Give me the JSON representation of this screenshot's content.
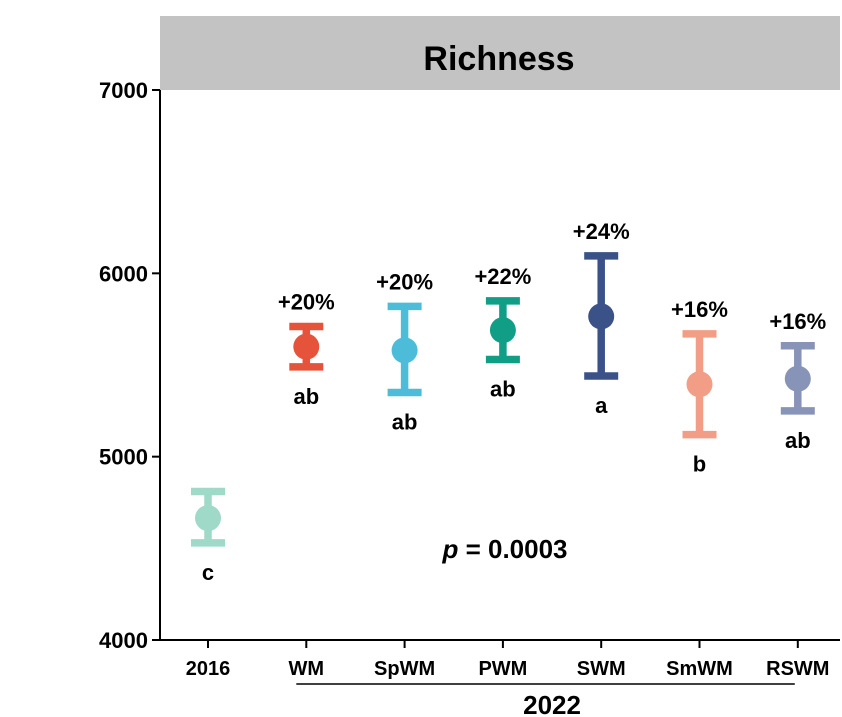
{
  "chart_data": {
    "type": "scatter",
    "title": "Richness",
    "xlabel": "",
    "ylabel": "",
    "ylim": [
      4000,
      7000
    ],
    "yticks": [
      4000,
      5000,
      6000,
      7000
    ],
    "grid": false,
    "categories": [
      "2016",
      "WM",
      "SpWM",
      "PWM",
      "SWM",
      "SmWM",
      "RSWM"
    ],
    "group_label": "2022",
    "group_label_spans": [
      "WM",
      "RSWM"
    ],
    "p_value_prefix": "p",
    "p_value_text": " = 0.0003",
    "series": [
      {
        "category": "2016",
        "mean": 4665,
        "lower": 4530,
        "upper": 4810,
        "pct_label": "",
        "sig": "c",
        "color": "#9fd9c7"
      },
      {
        "category": "WM",
        "mean": 5600,
        "lower": 5490,
        "upper": 5710,
        "pct_label": "+20%",
        "sig": "ab",
        "color": "#e5533a"
      },
      {
        "category": "SpWM",
        "mean": 5580,
        "lower": 5350,
        "upper": 5820,
        "pct_label": "+20%",
        "sig": "ab",
        "color": "#4dbcd8"
      },
      {
        "category": "PWM",
        "mean": 5690,
        "lower": 5530,
        "upper": 5850,
        "pct_label": "+22%",
        "sig": "ab",
        "color": "#119e87"
      },
      {
        "category": "SWM",
        "mean": 5765,
        "lower": 5440,
        "upper": 6095,
        "pct_label": "+24%",
        "sig": "a",
        "color": "#3b5289"
      },
      {
        "category": "SmWM",
        "mean": 5395,
        "lower": 5120,
        "upper": 5670,
        "pct_label": "+16%",
        "sig": "b",
        "color": "#f29e86"
      },
      {
        "category": "RSWM",
        "mean": 5425,
        "lower": 5250,
        "upper": 5605,
        "pct_label": "+16%",
        "sig": "ab",
        "color": "#8794b7"
      }
    ]
  }
}
